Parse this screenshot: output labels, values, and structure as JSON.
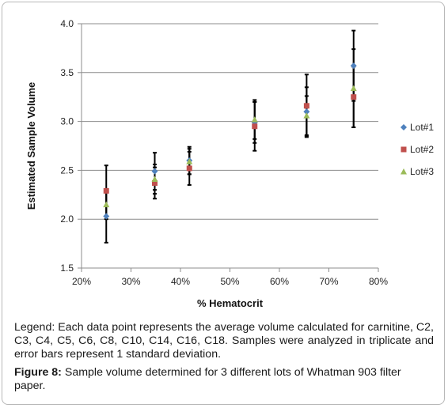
{
  "chart_data": {
    "type": "scatter",
    "xlabel": "% Hematocrit",
    "ylabel": "Estimated Sample Volume",
    "xlim": [
      20,
      80
    ],
    "ylim": [
      1.5,
      4.0
    ],
    "x_ticks": [
      "20%",
      "30%",
      "40%",
      "50%",
      "60%",
      "70%",
      "80%"
    ],
    "y_ticks": [
      "1.5",
      "2.0",
      "2.5",
      "3.0",
      "3.5",
      "4.0"
    ],
    "grid": "horizontal",
    "legend_position": "right",
    "series": [
      {
        "name": "Lot#1",
        "color": "#4f81bd",
        "marker": "diamond",
        "points": [
          {
            "x": 25,
            "y": 2.03,
            "err": 0.27
          },
          {
            "x": 34.8,
            "y": 2.49,
            "err": 0.19
          },
          {
            "x": 41.8,
            "y": 2.6,
            "err": 0.14
          },
          {
            "x": 55,
            "y": 2.99,
            "err": 0.21
          },
          {
            "x": 65.5,
            "y": 3.1,
            "err": 0.25
          },
          {
            "x": 75,
            "y": 3.57,
            "err": 0.36
          }
        ]
      },
      {
        "name": "Lot#2",
        "color": "#c0504d",
        "marker": "square",
        "points": [
          {
            "x": 25,
            "y": 2.29,
            "err": 0.26
          },
          {
            "x": 34.8,
            "y": 2.37,
            "err": 0.16
          },
          {
            "x": 41.8,
            "y": 2.52,
            "err": 0.17
          },
          {
            "x": 55,
            "y": 2.95,
            "err": 0.25
          },
          {
            "x": 65.5,
            "y": 3.16,
            "err": 0.32
          },
          {
            "x": 75,
            "y": 3.25,
            "err": 0.31
          }
        ]
      },
      {
        "name": "Lot#3",
        "color": "#9bbb59",
        "marker": "triangle",
        "points": [
          {
            "x": 25,
            "y": 2.15,
            "err": 0.15
          },
          {
            "x": 34.8,
            "y": 2.41,
            "err": 0.15
          },
          {
            "x": 41.8,
            "y": 2.59,
            "err": 0.13
          },
          {
            "x": 55,
            "y": 3.02,
            "err": 0.2
          },
          {
            "x": 65.5,
            "y": 3.06,
            "err": 0.2
          },
          {
            "x": 75,
            "y": 3.34,
            "err": 0.4
          }
        ]
      }
    ]
  },
  "caption": {
    "legend_text": "Legend: Each data point represents the average volume calculated for carnitine, C2, C3, C4, C5, C6, C8, C10, C14, C16, C18. Samples were analyzed in triplicate and error bars represent 1 standard deviation.",
    "figure_label": "Figure 8:",
    "figure_text": " Sample volume determined for 3 different lots of Whatman 903 filter paper."
  }
}
